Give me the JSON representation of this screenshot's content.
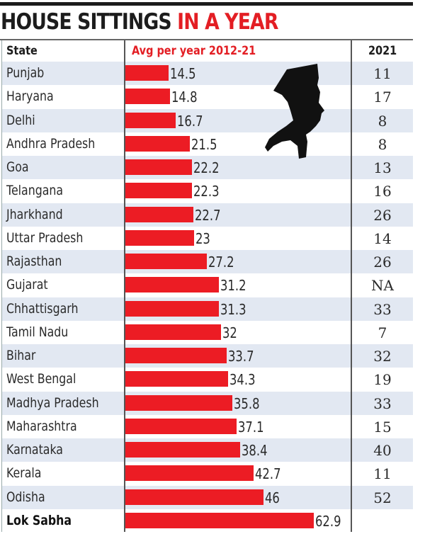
{
  "title": {
    "part1": "HOUSE SITTINGS",
    "part2": "IN A YEAR"
  },
  "colors": {
    "accent": "#e31e24",
    "bar": "#ec1c24",
    "row_alt": "#e2e8f2",
    "text": "#2a2a2a"
  },
  "icons": {
    "decoration": "silhouette-profile-icon"
  },
  "chart_data": {
    "type": "bar",
    "orientation": "horizontal",
    "title": "HOUSE SITTINGS IN A YEAR",
    "columns": [
      "State",
      "Avg per year 2012-21",
      "2021"
    ],
    "categories": [
      "Punjab",
      "Haryana",
      "Delhi",
      "Andhra Pradesh",
      "Goa",
      "Telangana",
      "Jharkhand",
      "Uttar Pradesh",
      "Rajasthan",
      "Gujarat",
      "Chhattisgarh",
      "Tamil Nadu",
      "Bihar",
      "West Bengal",
      "Madhya Pradesh",
      "Maharashtra",
      "Karnataka",
      "Kerala",
      "Odisha",
      "Lok Sabha"
    ],
    "series": [
      {
        "name": "Avg per year 2012-21",
        "values": [
          14.5,
          14.8,
          16.7,
          21.5,
          22.2,
          22.3,
          22.7,
          23,
          27.2,
          31.2,
          31.3,
          32,
          33.7,
          34.3,
          35.8,
          37.1,
          38.4,
          42.7,
          46,
          62.9
        ],
        "labels": [
          "14.5",
          "14.8",
          "16.7",
          "21.5",
          "22.2",
          "22.3",
          "22.7",
          "23",
          "27.2",
          "31.2",
          "31.3",
          "32",
          "33.7",
          "34.3",
          "35.8",
          "37.1",
          "38.4",
          "42.7",
          "46",
          "62.9"
        ]
      },
      {
        "name": "2021",
        "values": [
          "11",
          "17",
          "8",
          "8",
          "13",
          "16",
          "26",
          "14",
          "26",
          "NA",
          "33",
          "7",
          "32",
          "19",
          "33",
          "15",
          "40",
          "11",
          "52",
          ""
        ]
      }
    ],
    "bold_categories": [
      "Lok Sabha"
    ],
    "xlim": [
      0,
      62.9
    ],
    "grid": false,
    "legend": "none"
  }
}
